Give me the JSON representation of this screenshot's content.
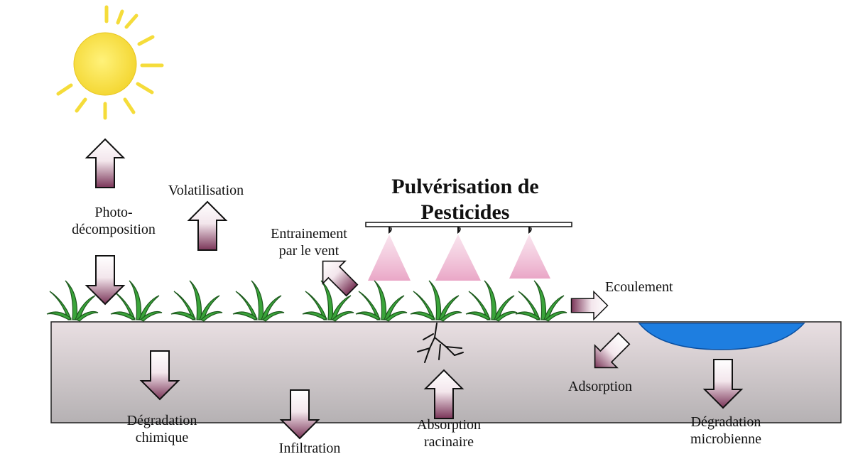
{
  "title": {
    "lines": [
      "Pulvérisation de",
      "Pesticides"
    ]
  },
  "labels": [
    {
      "lines": [
        "Photo-",
        "décomposition"
      ]
    },
    {
      "lines": [
        "Volatilisation"
      ]
    },
    {
      "lines": [
        "Entrainement",
        "par le vent"
      ]
    },
    {
      "lines": [
        "Ecoulement"
      ]
    },
    {
      "lines": [
        "Dégradation",
        "chimique"
      ]
    },
    {
      "lines": [
        "Infiltration"
      ]
    },
    {
      "lines": [
        "Absorption",
        "racinaire"
      ]
    },
    {
      "lines": [
        "Adsorption"
      ]
    },
    {
      "lines": [
        "Dégradation",
        "microbienne"
      ]
    }
  ]
}
